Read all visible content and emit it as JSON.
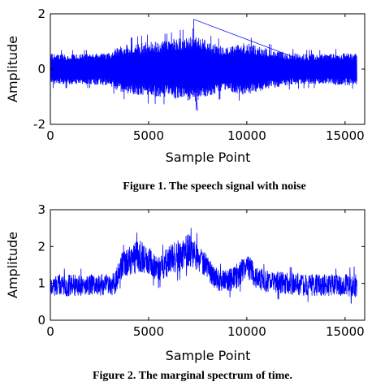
{
  "chart_data": [
    {
      "type": "line",
      "caption": "Figure 1. The speech signal with noise",
      "xlabel": "Sample Point",
      "ylabel": "Amplitude",
      "xlim": [
        0,
        16000
      ],
      "ylim": [
        -2,
        2
      ],
      "xticks": [
        0,
        5000,
        10000,
        15000
      ],
      "yticks": [
        -2,
        0,
        2
      ],
      "color": "#0000ff",
      "series": [
        {
          "kind": "noisy-signal",
          "n_samples": 15600,
          "x": [
            0,
            1000,
            2000,
            3000,
            3500,
            4000,
            5000,
            6000,
            6500,
            7000,
            7500,
            8000,
            9000,
            9500,
            10000,
            11000,
            12000,
            13000,
            14000,
            15000,
            15600
          ],
          "envelope_upper": [
            0.55,
            0.55,
            0.55,
            0.6,
            0.85,
            0.9,
            1.0,
            1.05,
            1.15,
            1.15,
            1.2,
            1.0,
            0.8,
            0.9,
            0.95,
            0.75,
            0.6,
            0.55,
            0.55,
            0.6,
            0.55
          ],
          "envelope_lower": [
            -0.55,
            -0.55,
            -0.55,
            -0.6,
            -0.85,
            -0.9,
            -1.0,
            -1.0,
            -1.1,
            -1.15,
            -1.2,
            -1.0,
            -0.8,
            -0.9,
            -0.95,
            -0.75,
            -0.6,
            -0.55,
            -0.55,
            -0.6,
            -0.55
          ],
          "peak_max": 1.8,
          "peak_min": -1.5
        }
      ]
    },
    {
      "type": "line",
      "caption": "Figure 2. The marginal spectrum of time.",
      "xlabel": "Sample Point",
      "ylabel": "Amplitude",
      "xlim": [
        0,
        16000
      ],
      "ylim": [
        0,
        3
      ],
      "xticks": [
        0,
        5000,
        10000,
        15000
      ],
      "yticks": [
        0,
        1,
        2,
        3
      ],
      "color": "#0000ff",
      "series": [
        {
          "kind": "noisy-signal",
          "n_samples": 15600,
          "x": [
            0,
            1000,
            2000,
            3000,
            3300,
            3600,
            4000,
            4500,
            5000,
            5500,
            6000,
            6500,
            7000,
            7500,
            8000,
            8500,
            9000,
            9500,
            10000,
            10500,
            11000,
            12000,
            13000,
            14000,
            15000,
            15600
          ],
          "baseline": [
            0.95,
            0.95,
            0.95,
            0.95,
            1.0,
            1.45,
            1.6,
            1.75,
            1.6,
            1.4,
            1.6,
            1.75,
            1.9,
            1.75,
            1.4,
            1.1,
            1.05,
            1.2,
            1.5,
            1.15,
            1.05,
            1.0,
            0.95,
            0.95,
            0.95,
            0.95
          ],
          "noise_halfwidth": [
            0.3,
            0.3,
            0.3,
            0.3,
            0.3,
            0.35,
            0.4,
            0.45,
            0.4,
            0.35,
            0.4,
            0.45,
            0.45,
            0.4,
            0.35,
            0.3,
            0.3,
            0.35,
            0.35,
            0.3,
            0.3,
            0.3,
            0.3,
            0.3,
            0.3,
            0.35
          ],
          "peak_max": 2.55,
          "peak_min": 0.4
        }
      ]
    }
  ]
}
